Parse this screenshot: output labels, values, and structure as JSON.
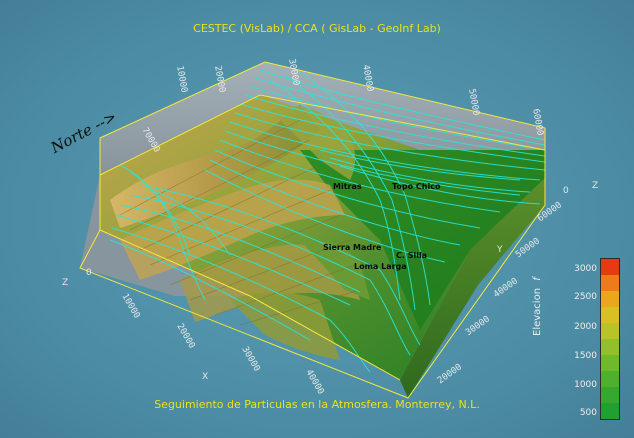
{
  "header": {
    "title": "CESTEC (VisLab) / CCA ( GisLab - GeoInf Lab)"
  },
  "footer": {
    "caption": "Seguimiento de Particulas en la Atmosfera. Monterrey, N.L."
  },
  "direction_label": "Norte -->",
  "places": {
    "mitras": "Mitras",
    "topo_chico": "Topo Chico",
    "sierra_madre": "Sierra Madre",
    "c_silla": "C. Silla",
    "loma_larga": "Loma Larga"
  },
  "axes": {
    "x_label": "X",
    "y_label": "Y",
    "z_label_left": "Z",
    "z_label_right": "Z",
    "x_ticks": [
      "10000",
      "20000",
      "30000",
      "40000"
    ],
    "y_ticks_near": [
      "20000",
      "30000",
      "40000",
      "50000",
      "60000"
    ],
    "y_ticks_far": [
      "30000",
      "40000",
      "50000",
      "60000",
      "70000"
    ],
    "z_tick_left": "0",
    "z_tick_right": "0",
    "x_ticks_far": [
      "10000",
      "20000",
      "30000",
      "40000",
      "50000",
      "60000",
      "70000"
    ]
  },
  "legend": {
    "title": "Elevacion",
    "unit_symbol": "f",
    "ticks": [
      "3000",
      "2500",
      "2000",
      "1500",
      "1000",
      "500"
    ],
    "colors": [
      "#e83a12",
      "#ee7a1a",
      "#e9a81b",
      "#d8c023",
      "#b9c327",
      "#93c02a",
      "#6fb92c",
      "#4fb02e",
      "#36a82f",
      "#1fa030"
    ]
  },
  "colors": {
    "background": "#4f8fa6",
    "title_text": "#e9e21c",
    "streamlines": "#29e5d8",
    "box_edge": "#f4e83a",
    "plain_green": "#1f8a20"
  }
}
